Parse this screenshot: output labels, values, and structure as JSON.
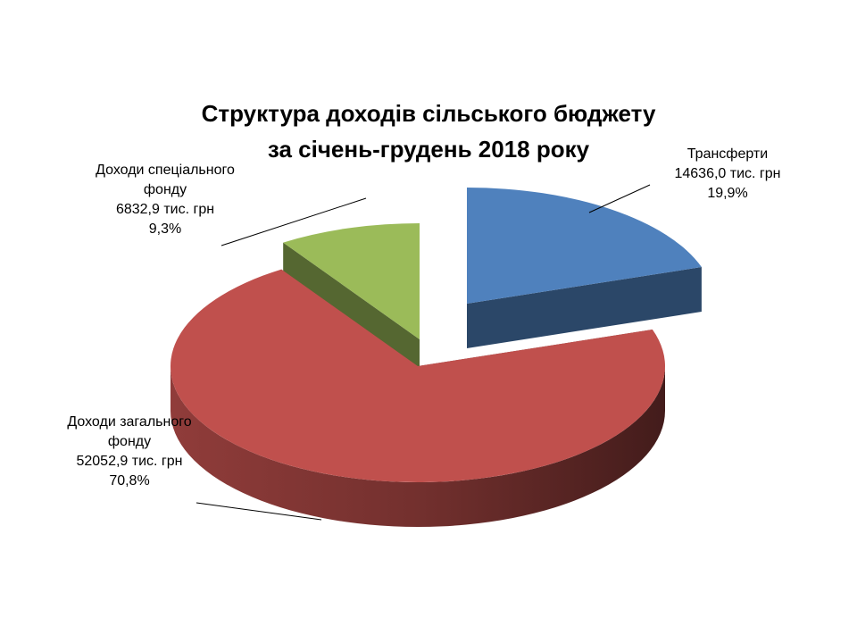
{
  "chart_data": {
    "type": "pie",
    "title": [
      "Структура доходів сільського бюджету",
      "за січень-грудень 2018 року"
    ],
    "categories": [
      "Трансферти",
      "Доходи загального фонду",
      "Доходи спеціального фонду"
    ],
    "values": [
      19.9,
      70.8,
      9.3
    ],
    "value_labels": [
      "19,9%",
      "70,8%",
      "9,3%"
    ],
    "amounts": [
      14636.0,
      52052.9,
      6832.9
    ],
    "amount_labels": [
      "14636,0 тис. грн",
      "52052,9 тис. грн",
      "6832,9 тис. грн"
    ],
    "colors": [
      "#4f81bd",
      "#c0504d",
      "#9bbb59"
    ]
  }
}
